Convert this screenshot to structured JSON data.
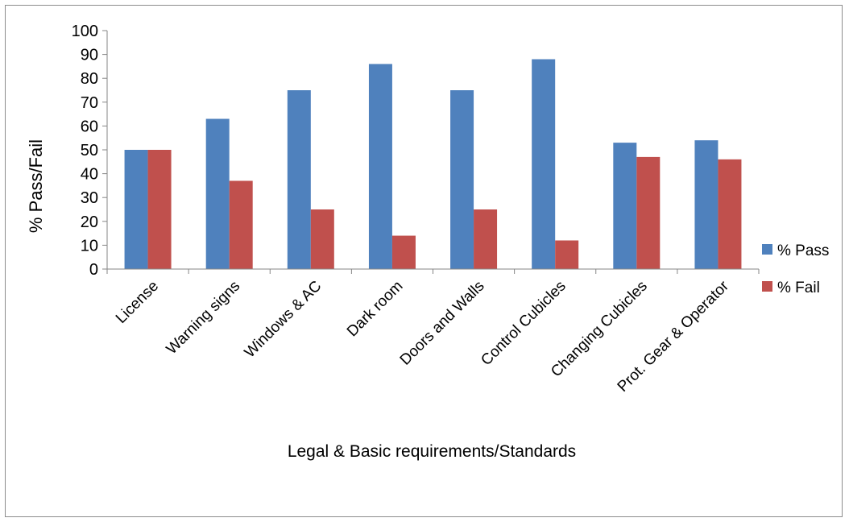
{
  "chart_data": {
    "type": "bar",
    "title": "",
    "xlabel": "Legal & Basic requirements/Standards",
    "ylabel": "% Pass/Fail",
    "ylim": [
      0,
      100
    ],
    "yticks": [
      0,
      10,
      20,
      30,
      40,
      50,
      60,
      70,
      80,
      90,
      100
    ],
    "grid": false,
    "legend_position": "right",
    "categories": [
      "License",
      "Warning signs",
      "Windows & AC",
      "Dark room",
      "Doors and Walls",
      "Control Cubicles",
      "Changing Cubicles",
      "Prot. Gear & Operator"
    ],
    "series": [
      {
        "name": "% Pass",
        "color": "#4f81bd",
        "values": [
          50,
          63,
          75,
          86,
          75,
          88,
          53,
          54
        ]
      },
      {
        "name": "% Fail",
        "color": "#c0504d",
        "values": [
          50,
          37,
          25,
          14,
          25,
          12,
          47,
          46
        ]
      }
    ]
  }
}
